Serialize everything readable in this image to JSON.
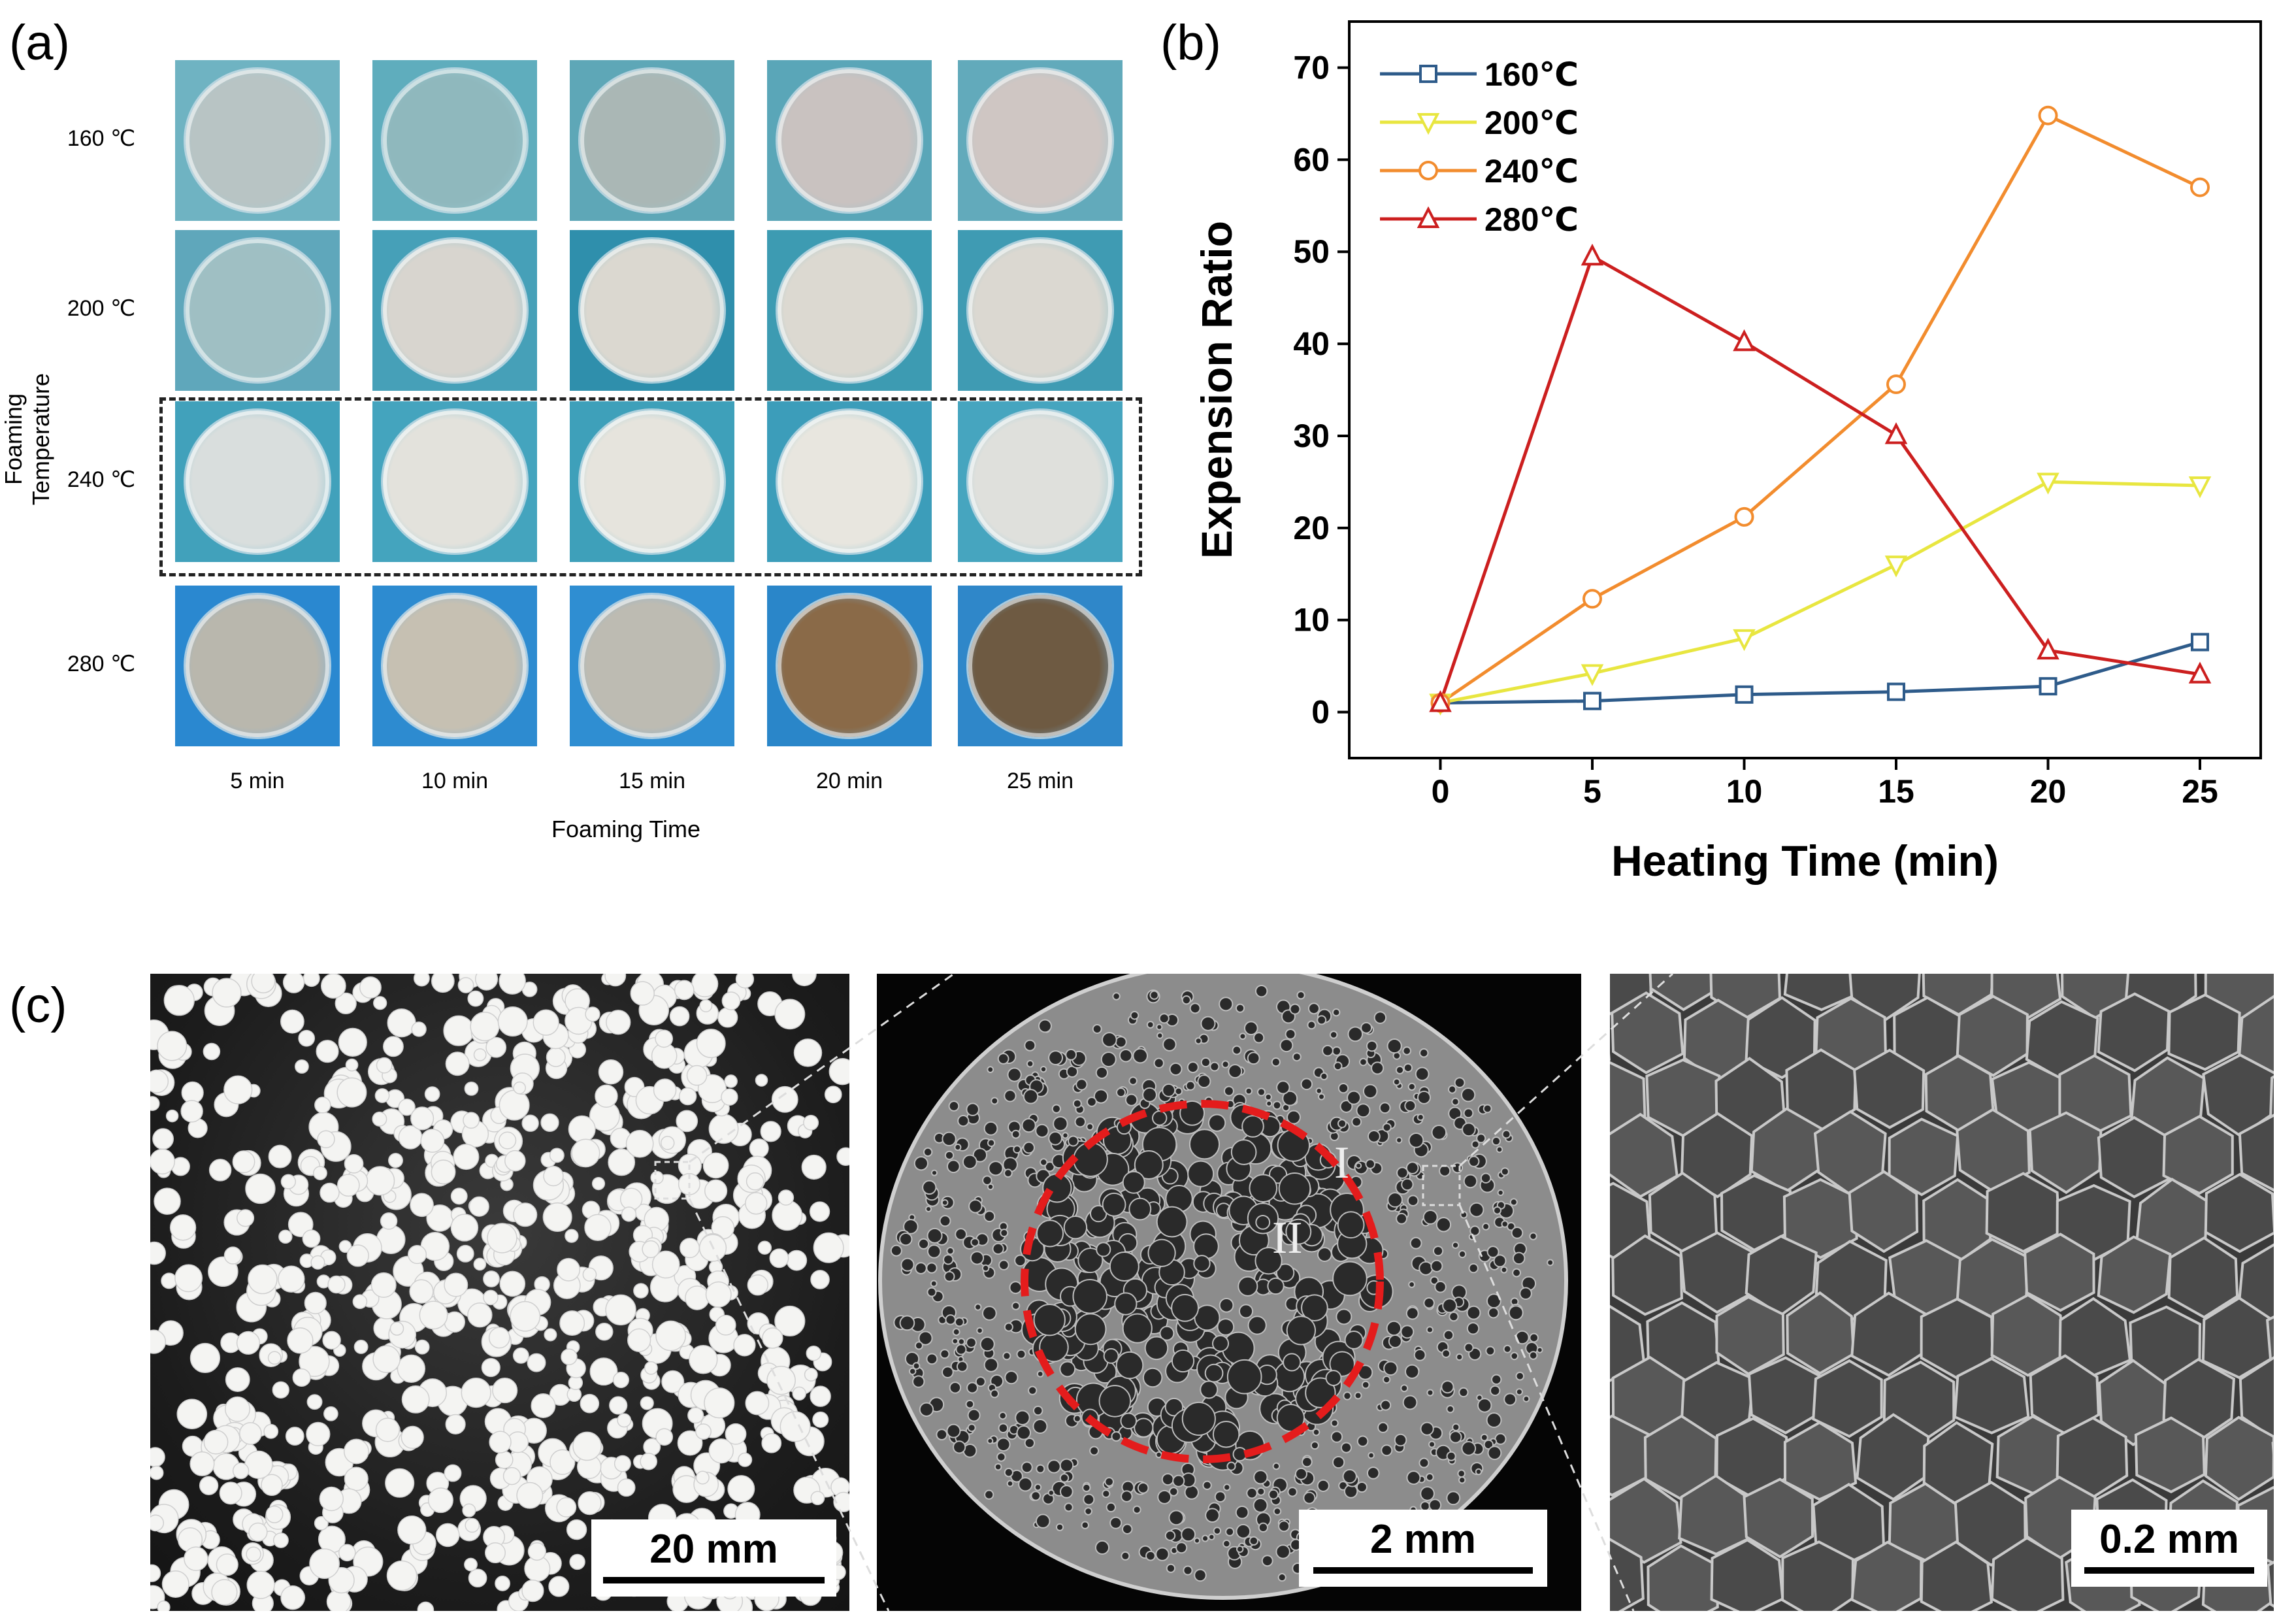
{
  "panels": {
    "a": {
      "label": "(a)",
      "y_title": "Foaming Temperature",
      "x_title": "Foaming Time",
      "rows": [
        "160 ℃",
        "200 ℃",
        "240 ℃",
        "280 ℃"
      ],
      "cols": [
        "5 min",
        "10 min",
        "15 min",
        "20 min",
        "25 min"
      ],
      "highlighted_row": "240 ℃",
      "dish_colors": [
        [
          "#b8c4c4",
          "#8fb8bd",
          "#aab7b5",
          "#c9c2c0",
          "#cfc6c3"
        ],
        [
          "#9fbfc3",
          "#d8d5cf",
          "#dbd8d0",
          "#dcd9d1",
          "#dbd8d1"
        ],
        [
          "#d9dedd",
          "#e3e2dc",
          "#e6e4dd",
          "#e8e6df",
          "#dfe0dc"
        ],
        [
          "#b9b7ad",
          "#c6c0b2",
          "#bdbbb2",
          "#8a6a48",
          "#6e5a42"
        ]
      ],
      "backgrounds": [
        [
          "#6fb3c2",
          "#5fadbd",
          "#5ea7b7",
          "#5aa6b8",
          "#62aabb"
        ],
        [
          "#5fa7bb",
          "#46a0b8",
          "#2f8fac",
          "#3d9bb2",
          "#3f9bb3"
        ],
        [
          "#41a1bb",
          "#44a4be",
          "#3ea0ba",
          "#3c9dba",
          "#46a5bf"
        ],
        [
          "#2a88d0",
          "#2d8bd0",
          "#2f8ed2",
          "#2a86c9",
          "#2f87c9"
        ]
      ]
    },
    "b": {
      "label": "(b)"
    },
    "c": {
      "label": "(c)",
      "scalebars": [
        "20 mm",
        "2 mm",
        "0.2 mm"
      ],
      "regions": [
        "I",
        "II"
      ]
    }
  },
  "chart_data": {
    "type": "line",
    "title": "",
    "xlabel": "Heating Time (min)",
    "ylabel": "Expension Ratio",
    "xlim": [
      -3,
      27
    ],
    "ylim": [
      -5,
      75
    ],
    "xticks": [
      0,
      5,
      10,
      15,
      20,
      25
    ],
    "yticks": [
      0,
      10,
      20,
      30,
      40,
      50,
      60,
      70
    ],
    "grid": false,
    "legend_position": "top-left",
    "x": [
      0,
      5,
      10,
      15,
      20,
      25
    ],
    "series": [
      {
        "name": "160℃",
        "values": [
          1,
          1.2,
          1.9,
          2.2,
          2.8,
          7.6
        ],
        "color": "#2e5b8a",
        "marker": "square"
      },
      {
        "name": "200℃",
        "values": [
          1,
          4.2,
          8,
          16,
          25,
          24.6
        ],
        "color": "#e8e640",
        "marker": "triangle-down"
      },
      {
        "name": "240℃",
        "values": [
          1,
          12.3,
          21.2,
          35.6,
          64.8,
          57
        ],
        "color": "#f28c2e",
        "marker": "circle"
      },
      {
        "name": "280℃",
        "values": [
          1,
          49.5,
          40.2,
          30.1,
          6.7,
          4.1
        ],
        "color": "#cc1f1f",
        "marker": "triangle-up"
      }
    ]
  }
}
